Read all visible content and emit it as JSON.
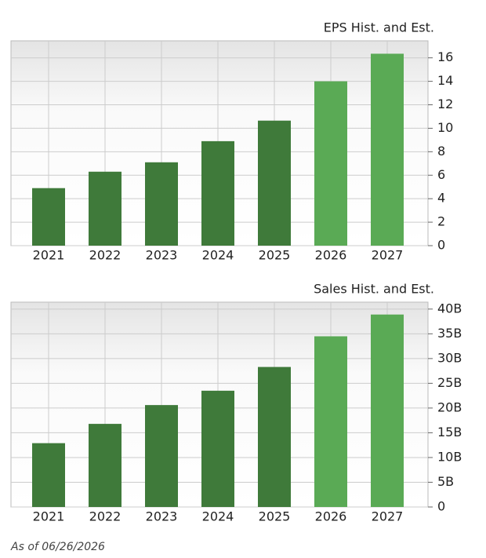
{
  "chart_data": [
    {
      "type": "bar",
      "title": "EPS Hist. and Est.",
      "categories": [
        "2021",
        "2022",
        "2023",
        "2024",
        "2025",
        "2026",
        "2027"
      ],
      "values": [
        4.9,
        6.3,
        7.1,
        8.9,
        10.65,
        14.0,
        16.35
      ],
      "colors": [
        "#3f7a3a",
        "#3f7a3a",
        "#3f7a3a",
        "#3f7a3a",
        "#3f7a3a",
        "#5aaa55",
        "#5aaa55"
      ],
      "ylim": [
        0,
        17.45
      ],
      "yticks": [
        0,
        2,
        4,
        6,
        8,
        10,
        12,
        14,
        16
      ],
      "grid": true
    },
    {
      "type": "bar",
      "title": "Sales Hist. and Est.",
      "categories": [
        "2021",
        "2022",
        "2023",
        "2024",
        "2025",
        "2026",
        "2027"
      ],
      "values": [
        12.9,
        16.8,
        20.6,
        23.5,
        28.3,
        34.5,
        38.9
      ],
      "colors": [
        "#3f7a3a",
        "#3f7a3a",
        "#3f7a3a",
        "#3f7a3a",
        "#3f7a3a",
        "#5aaa55",
        "#5aaa55"
      ],
      "ylim": [
        0,
        41.4
      ],
      "yticks": [
        0,
        {
          "value": 5,
          "label": "5B"
        },
        {
          "value": 10,
          "label": "10B"
        },
        {
          "value": 15,
          "label": "15B"
        },
        {
          "value": 20,
          "label": "20B"
        },
        {
          "value": 25,
          "label": "25B"
        },
        {
          "value": 30,
          "label": "30B"
        },
        {
          "value": 35,
          "label": "35B"
        },
        {
          "value": 40,
          "label": "40B"
        }
      ],
      "grid": true
    }
  ],
  "footer": "As of 06/26/2026"
}
